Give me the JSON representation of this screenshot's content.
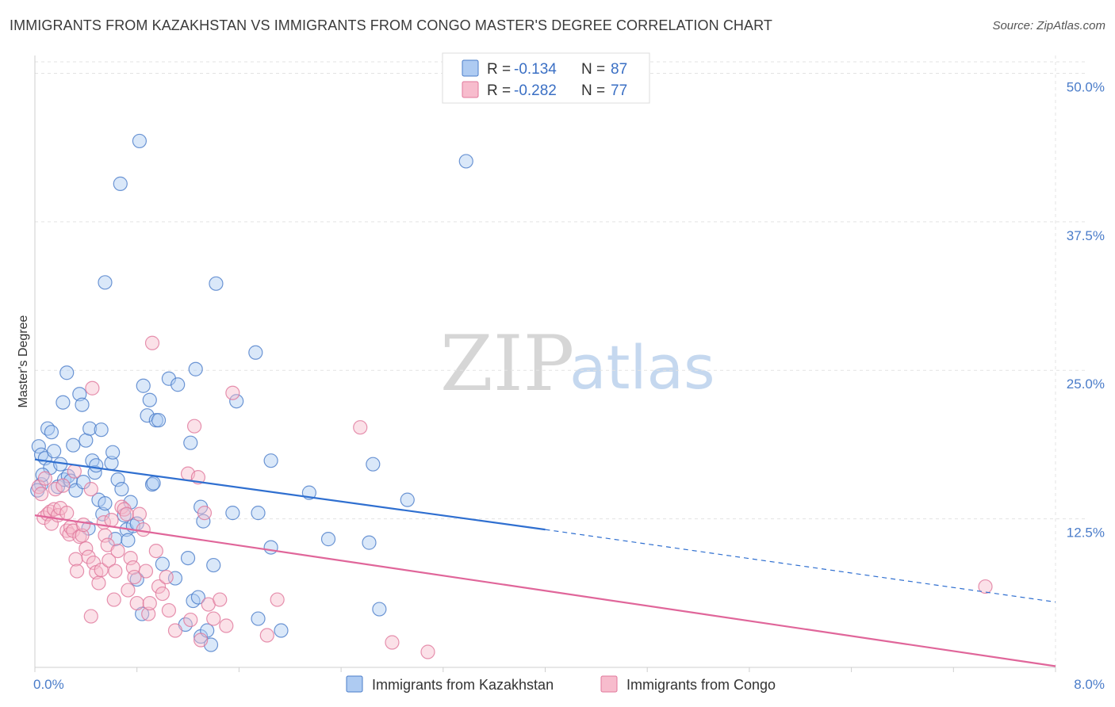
{
  "title": "IMMIGRANTS FROM KAZAKHSTAN VS IMMIGRANTS FROM CONGO MASTER'S DEGREE CORRELATION CHART",
  "source": "Source: ZipAtlas.com",
  "watermark": {
    "zip": "ZIP",
    "atlas": "atlas"
  },
  "colors": {
    "kazakhstan_fill": "#aecbf2",
    "kazakhstan_stroke": "#4a7cc9",
    "kazakhstan_line": "#2f6fd0",
    "congo_fill": "#f7bccd",
    "congo_stroke": "#e0779b",
    "congo_line": "#e0669a",
    "grid": "#e3e3e3",
    "tick_text": "#4a7cc9"
  },
  "stats": [
    {
      "r_label": "R =",
      "r_value": "-0.134",
      "n_label": "N =",
      "n_value": "87",
      "series": "kazakhstan"
    },
    {
      "r_label": "R =",
      "r_value": "-0.282",
      "n_label": "N =",
      "n_value": "77",
      "series": "congo"
    }
  ],
  "chart_data": {
    "type": "scatter",
    "title": "IMMIGRANTS FROM KAZAKHSTAN VS IMMIGRANTS FROM CONGO MASTER'S DEGREE CORRELATION CHART",
    "xlabel": "",
    "ylabel": "Master's Degree",
    "xlim": [
      0,
      8
    ],
    "ylim": [
      0,
      51.5
    ],
    "x_ticks": [
      {
        "value": 0,
        "label": "0.0%"
      },
      {
        "value": 8,
        "label": "8.0%"
      }
    ],
    "y_ticks": [
      {
        "value": 12.5,
        "label": "12.5%"
      },
      {
        "value": 25,
        "label": "25.0%"
      },
      {
        "value": 37.5,
        "label": "37.5%"
      },
      {
        "value": 50,
        "label": "50.0%"
      }
    ],
    "grid": true,
    "legend_position": "bottom-center",
    "series": [
      {
        "name": "Immigrants from Kazakhstan",
        "key": "kazakhstan",
        "trend": {
          "x0": 0,
          "y0": 17.5,
          "x1": 4.0,
          "y1": 11.6,
          "dash_x1": 8.0,
          "dash_y1": 5.5
        },
        "points": [
          [
            0.03,
            18.6
          ],
          [
            0.05,
            17.9
          ],
          [
            0.05,
            15.4
          ],
          [
            0.08,
            17.6
          ],
          [
            0.1,
            20.1
          ],
          [
            0.12,
            16.8
          ],
          [
            0.13,
            19.8
          ],
          [
            0.15,
            18.2
          ],
          [
            0.18,
            15.2
          ],
          [
            0.2,
            17.1
          ],
          [
            0.22,
            22.3
          ],
          [
            0.23,
            15.8
          ],
          [
            0.25,
            24.8
          ],
          [
            0.26,
            16.1
          ],
          [
            0.28,
            15.7
          ],
          [
            0.3,
            18.7
          ],
          [
            0.32,
            14.9
          ],
          [
            0.35,
            23.0
          ],
          [
            0.37,
            22.1
          ],
          [
            0.38,
            15.6
          ],
          [
            0.4,
            19.1
          ],
          [
            0.42,
            11.7
          ],
          [
            0.43,
            20.1
          ],
          [
            0.45,
            17.4
          ],
          [
            0.47,
            16.4
          ],
          [
            0.48,
            17.0
          ],
          [
            0.5,
            14.1
          ],
          [
            0.52,
            20.0
          ],
          [
            0.53,
            12.9
          ],
          [
            0.55,
            32.4
          ],
          [
            0.55,
            13.8
          ],
          [
            0.6,
            17.2
          ],
          [
            0.61,
            18.1
          ],
          [
            0.63,
            10.8
          ],
          [
            0.65,
            15.8
          ],
          [
            0.67,
            40.7
          ],
          [
            0.68,
            15.0
          ],
          [
            0.7,
            12.8
          ],
          [
            0.72,
            11.6
          ],
          [
            0.73,
            10.7
          ],
          [
            0.75,
            13.9
          ],
          [
            0.77,
            11.9
          ],
          [
            0.8,
            12.1
          ],
          [
            0.8,
            7.4
          ],
          [
            0.82,
            44.3
          ],
          [
            0.84,
            4.5
          ],
          [
            0.85,
            23.7
          ],
          [
            0.88,
            21.2
          ],
          [
            0.9,
            22.5
          ],
          [
            0.92,
            15.4
          ],
          [
            0.93,
            15.5
          ],
          [
            0.95,
            20.8
          ],
          [
            0.97,
            20.8
          ],
          [
            1.0,
            8.7
          ],
          [
            1.05,
            24.3
          ],
          [
            1.1,
            7.5
          ],
          [
            1.12,
            23.8
          ],
          [
            1.18,
            3.6
          ],
          [
            1.2,
            9.2
          ],
          [
            1.22,
            18.9
          ],
          [
            1.24,
            5.6
          ],
          [
            1.26,
            25.1
          ],
          [
            1.28,
            5.9
          ],
          [
            1.3,
            2.6
          ],
          [
            1.3,
            13.5
          ],
          [
            1.32,
            12.3
          ],
          [
            1.35,
            3.1
          ],
          [
            1.38,
            1.9
          ],
          [
            1.4,
            8.6
          ],
          [
            1.42,
            32.3
          ],
          [
            1.55,
            13.0
          ],
          [
            1.58,
            22.4
          ],
          [
            1.73,
            26.5
          ],
          [
            1.75,
            4.1
          ],
          [
            1.75,
            13.0
          ],
          [
            1.85,
            10.1
          ],
          [
            1.85,
            17.4
          ],
          [
            1.93,
            3.1
          ],
          [
            2.15,
            14.7
          ],
          [
            2.3,
            10.8
          ],
          [
            2.62,
            10.5
          ],
          [
            2.65,
            17.1
          ],
          [
            2.7,
            4.9
          ],
          [
            2.92,
            14.1
          ],
          [
            3.38,
            42.6
          ],
          [
            0.02,
            14.9
          ],
          [
            0.06,
            16.2
          ]
        ]
      },
      {
        "name": "Immigrants from Congo",
        "key": "congo",
        "trend": {
          "x0": 0,
          "y0": 12.8,
          "x1": 8.0,
          "y1": 0.1
        },
        "points": [
          [
            0.03,
            15.2
          ],
          [
            0.05,
            14.6
          ],
          [
            0.07,
            12.6
          ],
          [
            0.08,
            15.9
          ],
          [
            0.1,
            12.9
          ],
          [
            0.12,
            13.1
          ],
          [
            0.13,
            12.1
          ],
          [
            0.15,
            13.3
          ],
          [
            0.16,
            15.0
          ],
          [
            0.18,
            12.8
          ],
          [
            0.2,
            13.4
          ],
          [
            0.22,
            15.3
          ],
          [
            0.25,
            11.5
          ],
          [
            0.25,
            13.0
          ],
          [
            0.27,
            11.2
          ],
          [
            0.28,
            11.8
          ],
          [
            0.3,
            11.5
          ],
          [
            0.31,
            16.5
          ],
          [
            0.32,
            9.1
          ],
          [
            0.33,
            8.1
          ],
          [
            0.35,
            11.0
          ],
          [
            0.37,
            11.1
          ],
          [
            0.38,
            12.0
          ],
          [
            0.4,
            10.0
          ],
          [
            0.42,
            9.3
          ],
          [
            0.44,
            15.0
          ],
          [
            0.44,
            4.3
          ],
          [
            0.45,
            23.5
          ],
          [
            0.46,
            8.8
          ],
          [
            0.48,
            8.0
          ],
          [
            0.5,
            7.1
          ],
          [
            0.52,
            8.2
          ],
          [
            0.54,
            12.2
          ],
          [
            0.55,
            11.1
          ],
          [
            0.57,
            10.3
          ],
          [
            0.58,
            9.0
          ],
          [
            0.6,
            12.4
          ],
          [
            0.62,
            5.7
          ],
          [
            0.63,
            8.1
          ],
          [
            0.65,
            9.8
          ],
          [
            0.68,
            13.5
          ],
          [
            0.7,
            13.3
          ],
          [
            0.72,
            12.9
          ],
          [
            0.73,
            6.5
          ],
          [
            0.75,
            9.2
          ],
          [
            0.77,
            8.4
          ],
          [
            0.78,
            7.6
          ],
          [
            0.8,
            5.4
          ],
          [
            0.82,
            12.9
          ],
          [
            0.85,
            11.6
          ],
          [
            0.87,
            8.1
          ],
          [
            0.89,
            4.5
          ],
          [
            0.9,
            5.4
          ],
          [
            0.92,
            27.3
          ],
          [
            0.95,
            9.8
          ],
          [
            0.97,
            6.8
          ],
          [
            1.0,
            6.2
          ],
          [
            1.03,
            7.6
          ],
          [
            1.05,
            4.8
          ],
          [
            1.1,
            3.1
          ],
          [
            1.2,
            16.3
          ],
          [
            1.22,
            4.0
          ],
          [
            1.25,
            20.3
          ],
          [
            1.28,
            16.0
          ],
          [
            1.3,
            2.3
          ],
          [
            1.33,
            13.0
          ],
          [
            1.36,
            5.3
          ],
          [
            1.4,
            4.1
          ],
          [
            1.45,
            5.7
          ],
          [
            1.5,
            3.5
          ],
          [
            1.55,
            23.1
          ],
          [
            1.82,
            2.7
          ],
          [
            1.9,
            5.7
          ],
          [
            2.55,
            20.2
          ],
          [
            2.8,
            2.1
          ],
          [
            3.08,
            1.3
          ],
          [
            7.45,
            6.8
          ]
        ]
      }
    ]
  },
  "legend": [
    {
      "label": "Immigrants from Kazakhstan",
      "series": "kazakhstan"
    },
    {
      "label": "Immigrants from Congo",
      "series": "congo"
    }
  ]
}
